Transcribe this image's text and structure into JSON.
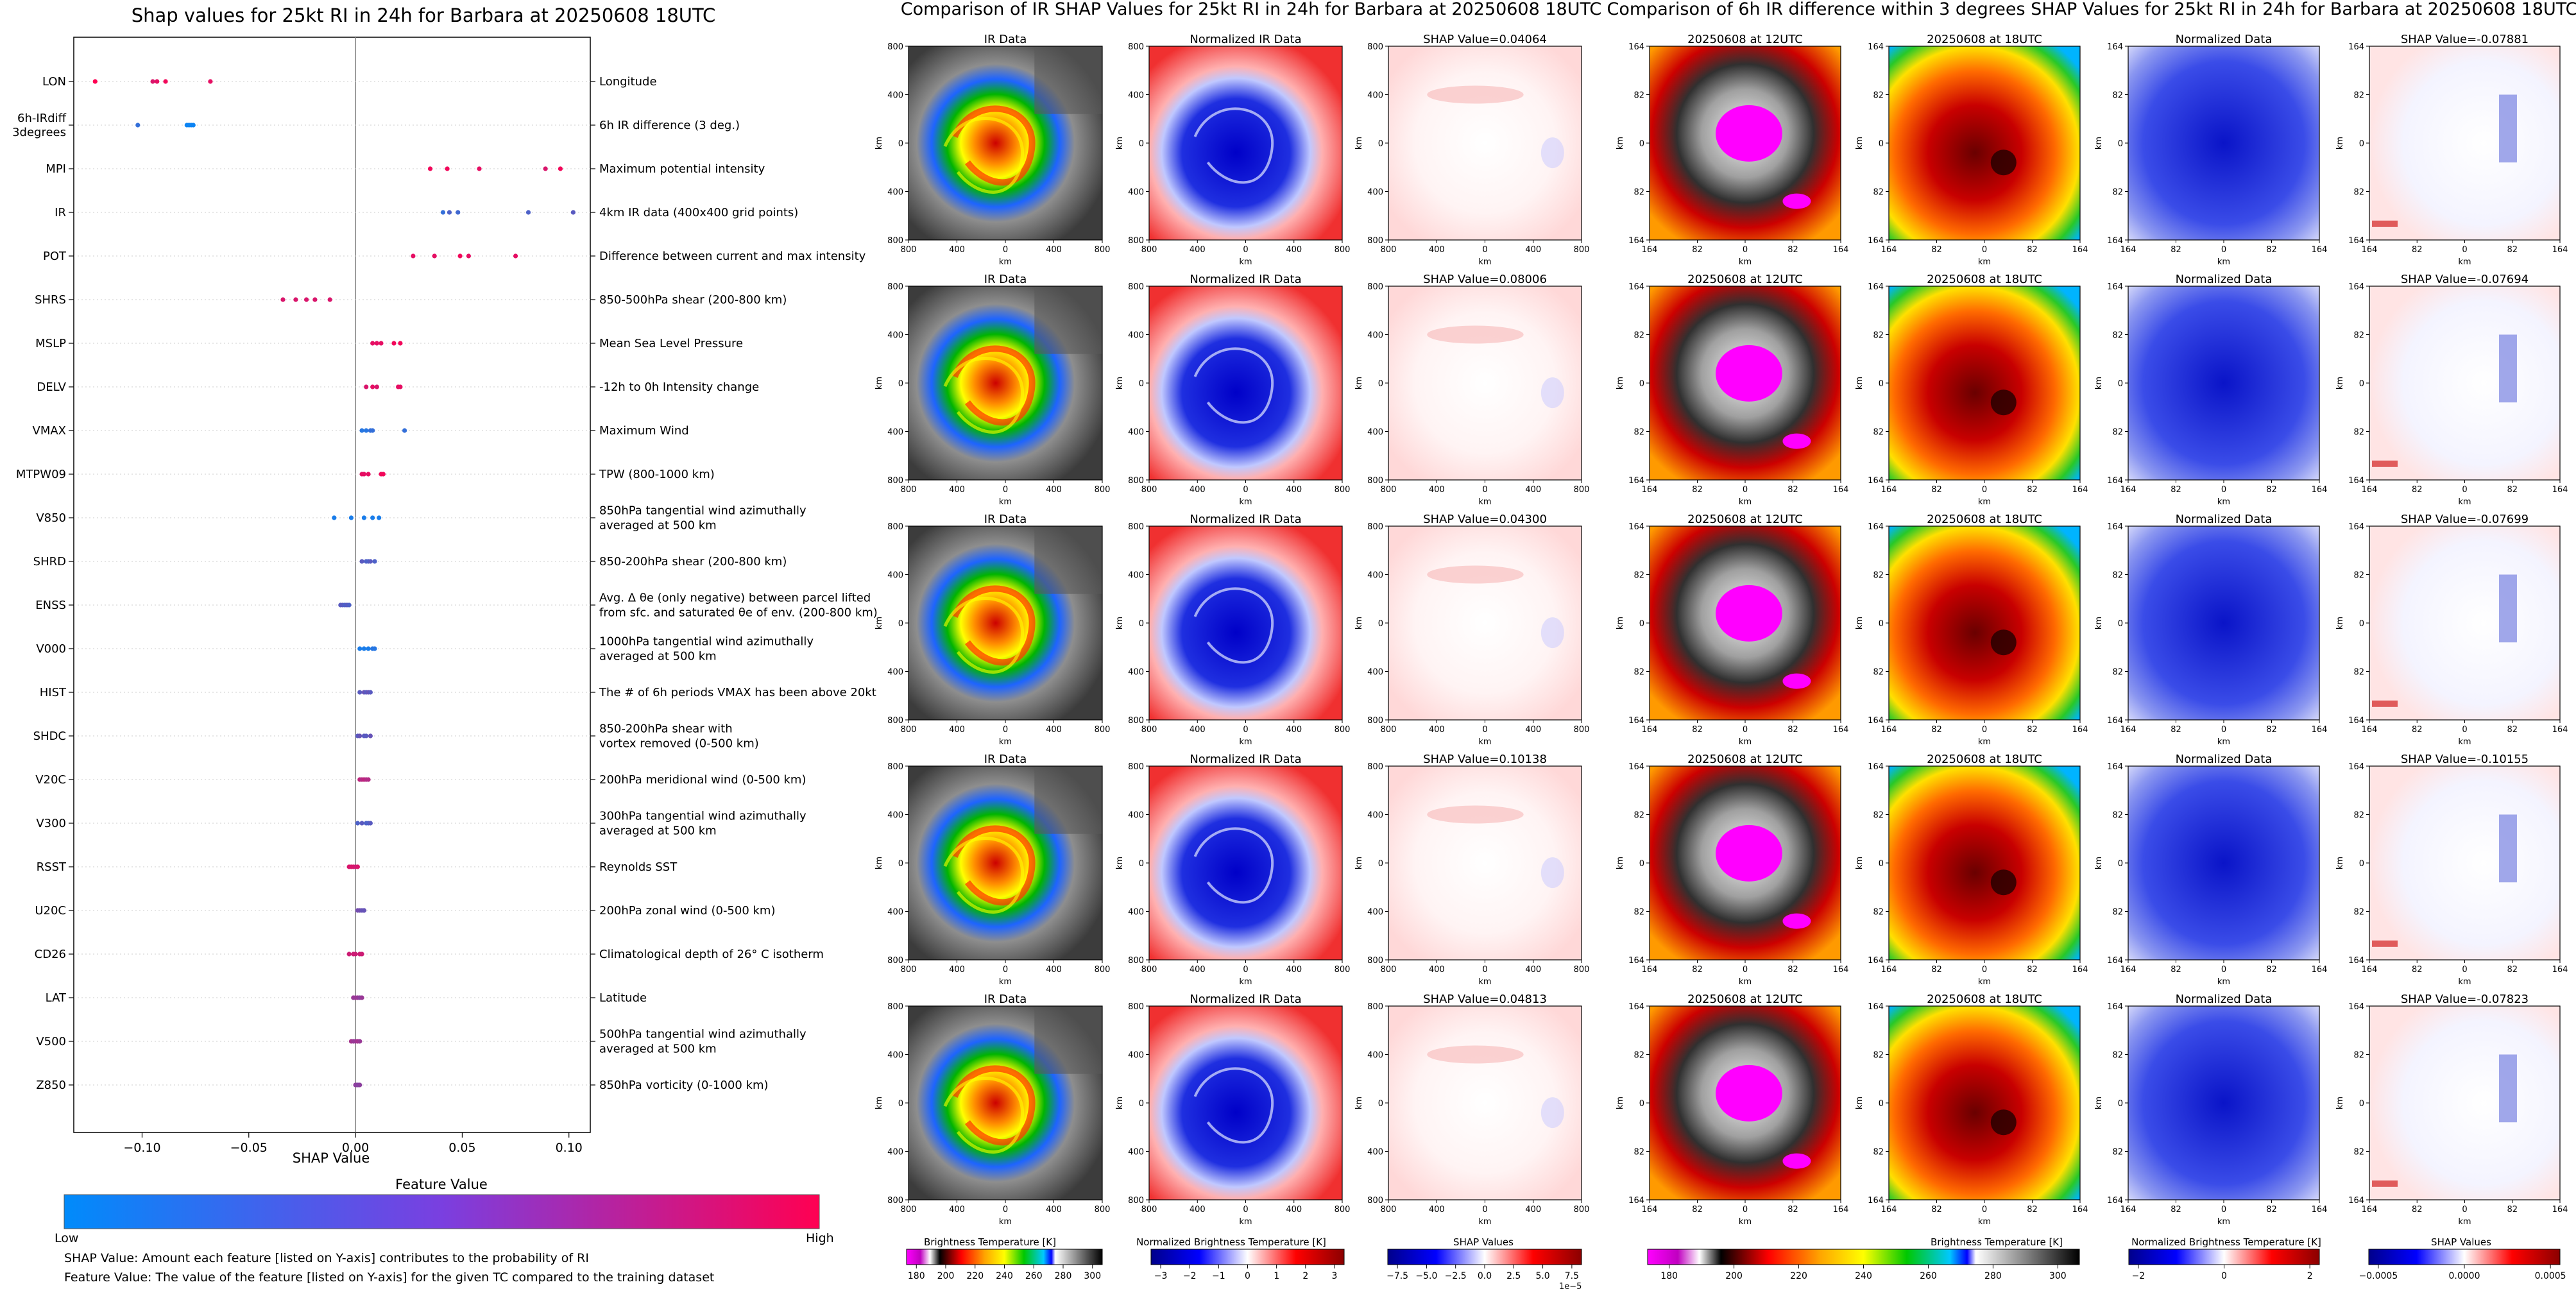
{
  "colors": {
    "low": "#008bfb",
    "high": "#ff0052",
    "blue": "#0000cc",
    "red": "#ee0000",
    "magenta": "#ff00ff"
  },
  "shap": {
    "xlabel": "SHAP Value",
    "legend_title": "Feature Value",
    "legend_low": "Low",
    "legend_high": "High",
    "note1": "SHAP Value: Amount each feature [listed on Y-axis] contributes to the probability of RI",
    "note2": "Feature Value: The value of the feature [listed on Y-axis] for the given TC compared to the training dataset"
  },
  "panels": {
    "ir_data": "IR Data",
    "norm_ir": "Normalized IR Data",
    "t12": "20250608 at 12UTC",
    "t18": "20250608 at 18UTC",
    "norm_data": "Normalized Data",
    "km": "km",
    "ir_ticks": [
      "800",
      "400",
      "0",
      "400",
      "800"
    ],
    "diff_ticks": [
      "164",
      "82",
      "0",
      "82",
      "164"
    ]
  },
  "right": {
    "title": "Comparison of 6h IR difference within 3 degrees SHAP Values for 25kt RI in 24h for Barbara at 20250608 18UTC",
    "shap_titles": [
      "SHAP Value=-0.07881",
      "SHAP Value=-0.07694",
      "SHAP Value=-0.07699",
      "SHAP Value=-0.10155",
      "SHAP Value=-0.07823"
    ]
  },
  "middle": {
    "title": "Comparison of IR SHAP Values for 25kt RI in 24h for Barbara at 20250608 18UTC",
    "shap_titles": [
      "SHAP Value=0.04064",
      "SHAP Value=0.08006",
      "SHAP Value=0.04300",
      "SHAP Value=0.10138",
      "SHAP Value=0.04813"
    ]
  },
  "colorbars": {
    "bt_label": "Brightness Temperature [K]",
    "bt_ticks_mid": [
      "180",
      "200",
      "220",
      "240",
      "260",
      "280",
      "300"
    ],
    "nbt_label": "Normalized Brightness Temperature [K]",
    "nbt_ticks_mid": [
      "−3",
      "−2",
      "−1",
      "0",
      "1",
      "2",
      "3"
    ],
    "shap_label": "SHAP Values",
    "shap_ticks_mid": [
      "−7.5",
      "−5.0",
      "−2.5",
      "0.0",
      "2.5",
      "5.0",
      "7.5"
    ],
    "shap_exp_mid": "1e−5",
    "bt_ticks_right": [
      "180",
      "200",
      "220",
      "240",
      "260",
      "280",
      "300"
    ],
    "nbt_ticks_right": [
      "−2",
      "0",
      "2"
    ],
    "shap_ticks_right": [
      "−0.0005",
      "0.0000",
      "0.0005"
    ]
  },
  "chart_data": [
    {
      "type": "scatter",
      "title": "Shap values for 25kt RI in 24h for Barbara at 20250608 18UTC",
      "xlabel": "SHAP Value",
      "xlim": [
        -0.132,
        0.11
      ],
      "xticks": [
        -0.1,
        -0.05,
        0.0,
        0.05,
        0.1
      ],
      "xtick_labels": [
        "−0.10",
        "−0.05",
        "0.00",
        "0.05",
        "0.10"
      ],
      "features": [
        {
          "code": "LON",
          "desc": "Longitude",
          "points": [
            [
              -0.122,
              1.0
            ],
            [
              -0.095,
              0.85
            ],
            [
              -0.093,
              0.9
            ],
            [
              -0.089,
              0.95
            ],
            [
              -0.068,
              0.9
            ]
          ]
        },
        {
          "code": "6h-IRdiff\n3degrees",
          "desc": "6h IR difference (3 deg.)",
          "points": [
            [
              -0.102,
              0.2
            ],
            [
              -0.079,
              0.05
            ],
            [
              -0.078,
              0.05
            ],
            [
              -0.077,
              0.05
            ],
            [
              -0.076,
              0.05
            ]
          ]
        },
        {
          "code": "MPI",
          "desc": "Maximum potential intensity",
          "points": [
            [
              0.035,
              0.95
            ],
            [
              0.043,
              0.95
            ],
            [
              0.058,
              0.9
            ],
            [
              0.089,
              0.85
            ],
            [
              0.096,
              0.95
            ]
          ]
        },
        {
          "code": "IR",
          "desc": "4km IR data (400x400 grid points)",
          "points": [
            [
              0.041,
              0.2
            ],
            [
              0.044,
              0.3
            ],
            [
              0.048,
              0.25
            ],
            [
              0.081,
              0.3
            ],
            [
              0.102,
              0.35
            ]
          ]
        },
        {
          "code": "POT",
          "desc": "Difference between current and max intensity",
          "points": [
            [
              0.027,
              0.9
            ],
            [
              0.037,
              0.9
            ],
            [
              0.049,
              0.95
            ],
            [
              0.053,
              0.9
            ],
            [
              0.075,
              0.9
            ]
          ]
        },
        {
          "code": "SHRS",
          "desc": "850-500hPa shear (200-800 km)",
          "points": [
            [
              -0.034,
              0.85
            ],
            [
              -0.028,
              0.85
            ],
            [
              -0.023,
              0.85
            ],
            [
              -0.019,
              0.85
            ],
            [
              -0.012,
              0.85
            ]
          ]
        },
        {
          "code": "MSLP",
          "desc": "Mean Sea Level Pressure",
          "points": [
            [
              0.008,
              0.9
            ],
            [
              0.01,
              0.9
            ],
            [
              0.012,
              0.9
            ],
            [
              0.018,
              0.95
            ],
            [
              0.021,
              0.95
            ]
          ]
        },
        {
          "code": "DELV",
          "desc": "-12h to 0h Intensity change",
          "points": [
            [
              0.005,
              0.85
            ],
            [
              0.008,
              0.9
            ],
            [
              0.01,
              0.85
            ],
            [
              0.02,
              0.9
            ],
            [
              0.021,
              0.9
            ]
          ]
        },
        {
          "code": "VMAX",
          "desc": "Maximum Wind",
          "points": [
            [
              0.003,
              0.15
            ],
            [
              0.005,
              0.15
            ],
            [
              0.007,
              0.2
            ],
            [
              0.008,
              0.2
            ],
            [
              0.023,
              0.2
            ]
          ]
        },
        {
          "code": "MTPW09",
          "desc": "TPW (800-1000 km)",
          "points": [
            [
              0.003,
              0.9
            ],
            [
              0.004,
              0.9
            ],
            [
              0.006,
              0.9
            ],
            [
              0.012,
              0.95
            ],
            [
              0.013,
              0.95
            ]
          ]
        },
        {
          "code": "V850",
          "desc": "850hPa tangential wind azimuthally\naveraged at 500 km",
          "points": [
            [
              -0.01,
              0.1
            ],
            [
              -0.002,
              0.1
            ],
            [
              0.004,
              0.1
            ],
            [
              0.008,
              0.1
            ],
            [
              0.011,
              0.1
            ]
          ]
        },
        {
          "code": "SHRD",
          "desc": "850-200hPa shear (200-800 km)",
          "points": [
            [
              0.003,
              0.35
            ],
            [
              0.005,
              0.3
            ],
            [
              0.006,
              0.3
            ],
            [
              0.007,
              0.35
            ],
            [
              0.009,
              0.3
            ]
          ]
        },
        {
          "code": "ENSS",
          "desc": "Avg. Δ θe (only negative) between parcel lifted\nfrom sfc. and saturated θe of env. (200-800 km)",
          "points": [
            [
              -0.007,
              0.35
            ],
            [
              -0.006,
              0.35
            ],
            [
              -0.005,
              0.3
            ],
            [
              -0.004,
              0.35
            ],
            [
              -0.003,
              0.3
            ]
          ]
        },
        {
          "code": "V000",
          "desc": "1000hPa tangential wind azimuthally\naveraged at 500 km",
          "points": [
            [
              0.002,
              0.1
            ],
            [
              0.004,
              0.1
            ],
            [
              0.006,
              0.1
            ],
            [
              0.008,
              0.15
            ],
            [
              0.009,
              0.15
            ]
          ]
        },
        {
          "code": "HIST",
          "desc": "The # of 6h periods VMAX has been above 20kt",
          "points": [
            [
              0.002,
              0.35
            ],
            [
              0.004,
              0.4
            ],
            [
              0.005,
              0.35
            ],
            [
              0.006,
              0.4
            ],
            [
              0.007,
              0.35
            ]
          ]
        },
        {
          "code": "SHDC",
          "desc": "850-200hPa shear with\nvortex removed (0-500 km)",
          "points": [
            [
              0.001,
              0.35
            ],
            [
              0.002,
              0.4
            ],
            [
              0.004,
              0.35
            ],
            [
              0.005,
              0.35
            ],
            [
              0.007,
              0.4
            ]
          ]
        },
        {
          "code": "V20C",
          "desc": "200hPa meridional wind (0-500 km)",
          "points": [
            [
              0.002,
              0.75
            ],
            [
              0.003,
              0.7
            ],
            [
              0.004,
              0.75
            ],
            [
              0.005,
              0.7
            ],
            [
              0.006,
              0.7
            ]
          ]
        },
        {
          "code": "V300",
          "desc": "300hPa tangential wind azimuthally\naveraged at 500 km",
          "points": [
            [
              0.001,
              0.3
            ],
            [
              0.003,
              0.35
            ],
            [
              0.005,
              0.3
            ],
            [
              0.006,
              0.3
            ],
            [
              0.007,
              0.35
            ]
          ]
        },
        {
          "code": "RSST",
          "desc": "Reynolds SST",
          "points": [
            [
              -0.003,
              0.85
            ],
            [
              -0.002,
              0.85
            ],
            [
              -0.001,
              0.85
            ],
            [
              0.0,
              0.8
            ],
            [
              0.001,
              0.85
            ]
          ]
        },
        {
          "code": "U20C",
          "desc": "200hPa zonal wind (0-500 km)",
          "points": [
            [
              0.001,
              0.45
            ],
            [
              0.002,
              0.45
            ],
            [
              0.003,
              0.4
            ],
            [
              0.004,
              0.45
            ],
            [
              0.004,
              0.4
            ]
          ]
        },
        {
          "code": "CD26",
          "desc": "Climatological depth of 26° C isotherm",
          "points": [
            [
              -0.003,
              0.8
            ],
            [
              -0.001,
              0.8
            ],
            [
              0.0,
              0.8
            ],
            [
              0.002,
              0.8
            ],
            [
              0.003,
              0.8
            ]
          ]
        },
        {
          "code": "LAT",
          "desc": "Latitude",
          "points": [
            [
              -0.001,
              0.6
            ],
            [
              0.0,
              0.6
            ],
            [
              0.001,
              0.6
            ],
            [
              0.002,
              0.55
            ],
            [
              0.003,
              0.6
            ]
          ]
        },
        {
          "code": "V500",
          "desc": "500hPa tangential wind azimuthally\naveraged at 500 km",
          "points": [
            [
              -0.002,
              0.65
            ],
            [
              -0.001,
              0.6
            ],
            [
              0.0,
              0.6
            ],
            [
              0.001,
              0.65
            ],
            [
              0.002,
              0.6
            ]
          ]
        },
        {
          "code": "Z850",
          "desc": "850hPa vorticity (0-1000 km)",
          "points": [
            [
              0.0,
              0.55
            ],
            [
              0.0005,
              0.55
            ],
            [
              0.001,
              0.55
            ],
            [
              0.0015,
              0.5
            ],
            [
              0.002,
              0.55
            ]
          ]
        }
      ]
    },
    {
      "type": "heatmap",
      "title": "Comparison of IR SHAP Values for 25kt RI in 24h for Barbara at 20250608 18UTC",
      "rows": 5,
      "panels_per_row": [
        "IR Data",
        "Normalized IR Data",
        "SHAP Value"
      ],
      "shap_values": [
        0.04064,
        0.08006,
        0.043,
        0.10138,
        0.04813
      ],
      "axis_range_km": [
        -800,
        800
      ]
    },
    {
      "type": "heatmap",
      "title": "Comparison of 6h IR difference within 3 degrees SHAP Values for 25kt RI in 24h for Barbara at 20250608 18UTC",
      "rows": 5,
      "panels_per_row": [
        "20250608 at 12UTC",
        "20250608 at 18UTC",
        "Normalized Data",
        "SHAP Value"
      ],
      "shap_values": [
        -0.07881,
        -0.07694,
        -0.07699,
        -0.10155,
        -0.07823
      ],
      "axis_range_km": [
        -164,
        164
      ]
    }
  ]
}
